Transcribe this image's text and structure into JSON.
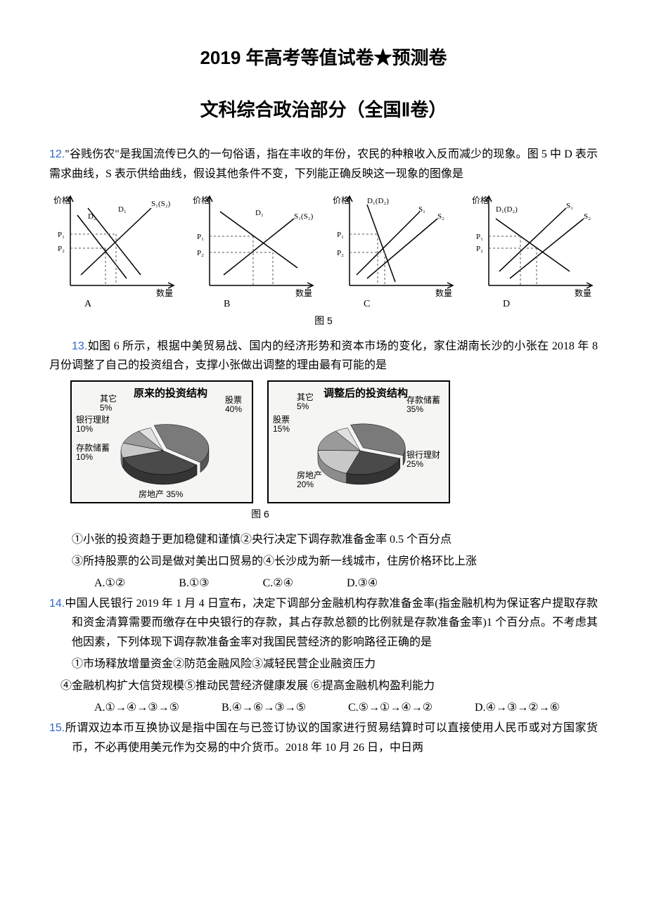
{
  "title1": "2019 年高考等值试卷★预测卷",
  "title2": "文科综合政治部分（全国Ⅱ卷）",
  "q12": {
    "num": "12.",
    "text": "\"谷贱伤农\"是我国流传已久的一句俗语，指在丰收的年份，农民的种粮收入反而减少的现象。图 5 中 D 表示需求曲线，S 表示供给曲线，假设其他条件不变，下列能正确反映这一现象的图像是"
  },
  "fig5_caption": "图 5",
  "charts": {
    "axis_color": "#000000",
    "line_color": "#000000",
    "dash_color": "#555555",
    "x_label": "数量",
    "y_label": "价格",
    "p1": "P₁",
    "p2": "P₂",
    "labels": [
      "A",
      "B",
      "C",
      "D"
    ],
    "A": {
      "d1": "D₁",
      "d2": "D₂",
      "s": "S₁(S₂)"
    },
    "B": {
      "d": "D₁",
      "s": "S₁(S₂)"
    },
    "C": {
      "d": "D₁(D₂)",
      "s1": "S₁",
      "s2": "S₂"
    },
    "D": {
      "d": "D₁(D₂)",
      "s1": "S₁",
      "s2": "S₂"
    }
  },
  "q13": {
    "num": "13.",
    "text": "如图 6 所示，根据中美贸易战、国内的经济形势和资本市场的变化，家住湖南长沙的小张在 2018 年 8 月份调整了自己的投资组合，支撑小张做出调整的理由最有可能的是"
  },
  "pies": {
    "left": {
      "title": "原来的投资结构",
      "segments": [
        {
          "label": "股票",
          "value": "40%",
          "color": "#7a7a7a"
        },
        {
          "label": "房地产",
          "value": "35%",
          "color": "#4a4a4a"
        },
        {
          "label": "存款储蓄",
          "value": "10%",
          "color": "#c8c8c8"
        },
        {
          "label": "银行理财",
          "value": "10%",
          "color": "#9a9a9a"
        },
        {
          "label": "其它",
          "value": "5%",
          "color": "#e0e0e0"
        }
      ]
    },
    "right": {
      "title": "调整后的投资结构",
      "segments": [
        {
          "label": "存款储蓄",
          "value": "35%",
          "color": "#7a7a7a"
        },
        {
          "label": "银行理财",
          "value": "25%",
          "color": "#4a4a4a"
        },
        {
          "label": "房地产",
          "value": "20%",
          "color": "#c8c8c8"
        },
        {
          "label": "股票",
          "value": "15%",
          "color": "#9a9a9a"
        },
        {
          "label": "其它",
          "value": "5%",
          "color": "#e0e0e0"
        }
      ]
    }
  },
  "fig6_caption": "图 6",
  "q13_choices_line1": "①小张的投资趋于更加稳健和谨慎②央行决定下调存款准备金率 0.5 个百分点",
  "q13_choices_line2": "③所持股票的公司是做对美出口贸易的④长沙成为新一线城市，住房价格环比上涨",
  "q13_opts": {
    "A": "A.①②",
    "B": "B.①③",
    "C": "C.②④",
    "D": "D.③④"
  },
  "q14": {
    "num": "14.",
    "text1": "中国人民银行 2019 年 1 月 4 日宣布，决定下调部分金融机构存款准备金率(指金融机构为保证客户提取存款和资金清算需要而缴存在中央银行的存款，其占存款总额的比例就是存款准备金率)1 个百分点。不考虑其他因素，下列体现下调存款准备金率对我国民营经济的影响路径正确的是",
    "line2": "①市场释放增量资金②防范金融风险③减轻民营企业融资压力",
    "line3": "④金融机构扩大信贷规模⑤推动民营经济健康发展 ⑥提高金融机构盈利能力",
    "opts": {
      "A": "A.①→④→③→⑤",
      "B": "B.④→⑥→③→⑤",
      "C": "C.⑤→①→④→②",
      "D": "D.④→③→②→⑥"
    }
  },
  "q15": {
    "num": "15.",
    "text": "所谓双边本币互换协议是指中国在与已签订协议的国家进行贸易结算时可以直接使用人民币或对方国家货币，不必再使用美元作为交易的中介货币。2018 年 10 月 26 日，中日两"
  }
}
